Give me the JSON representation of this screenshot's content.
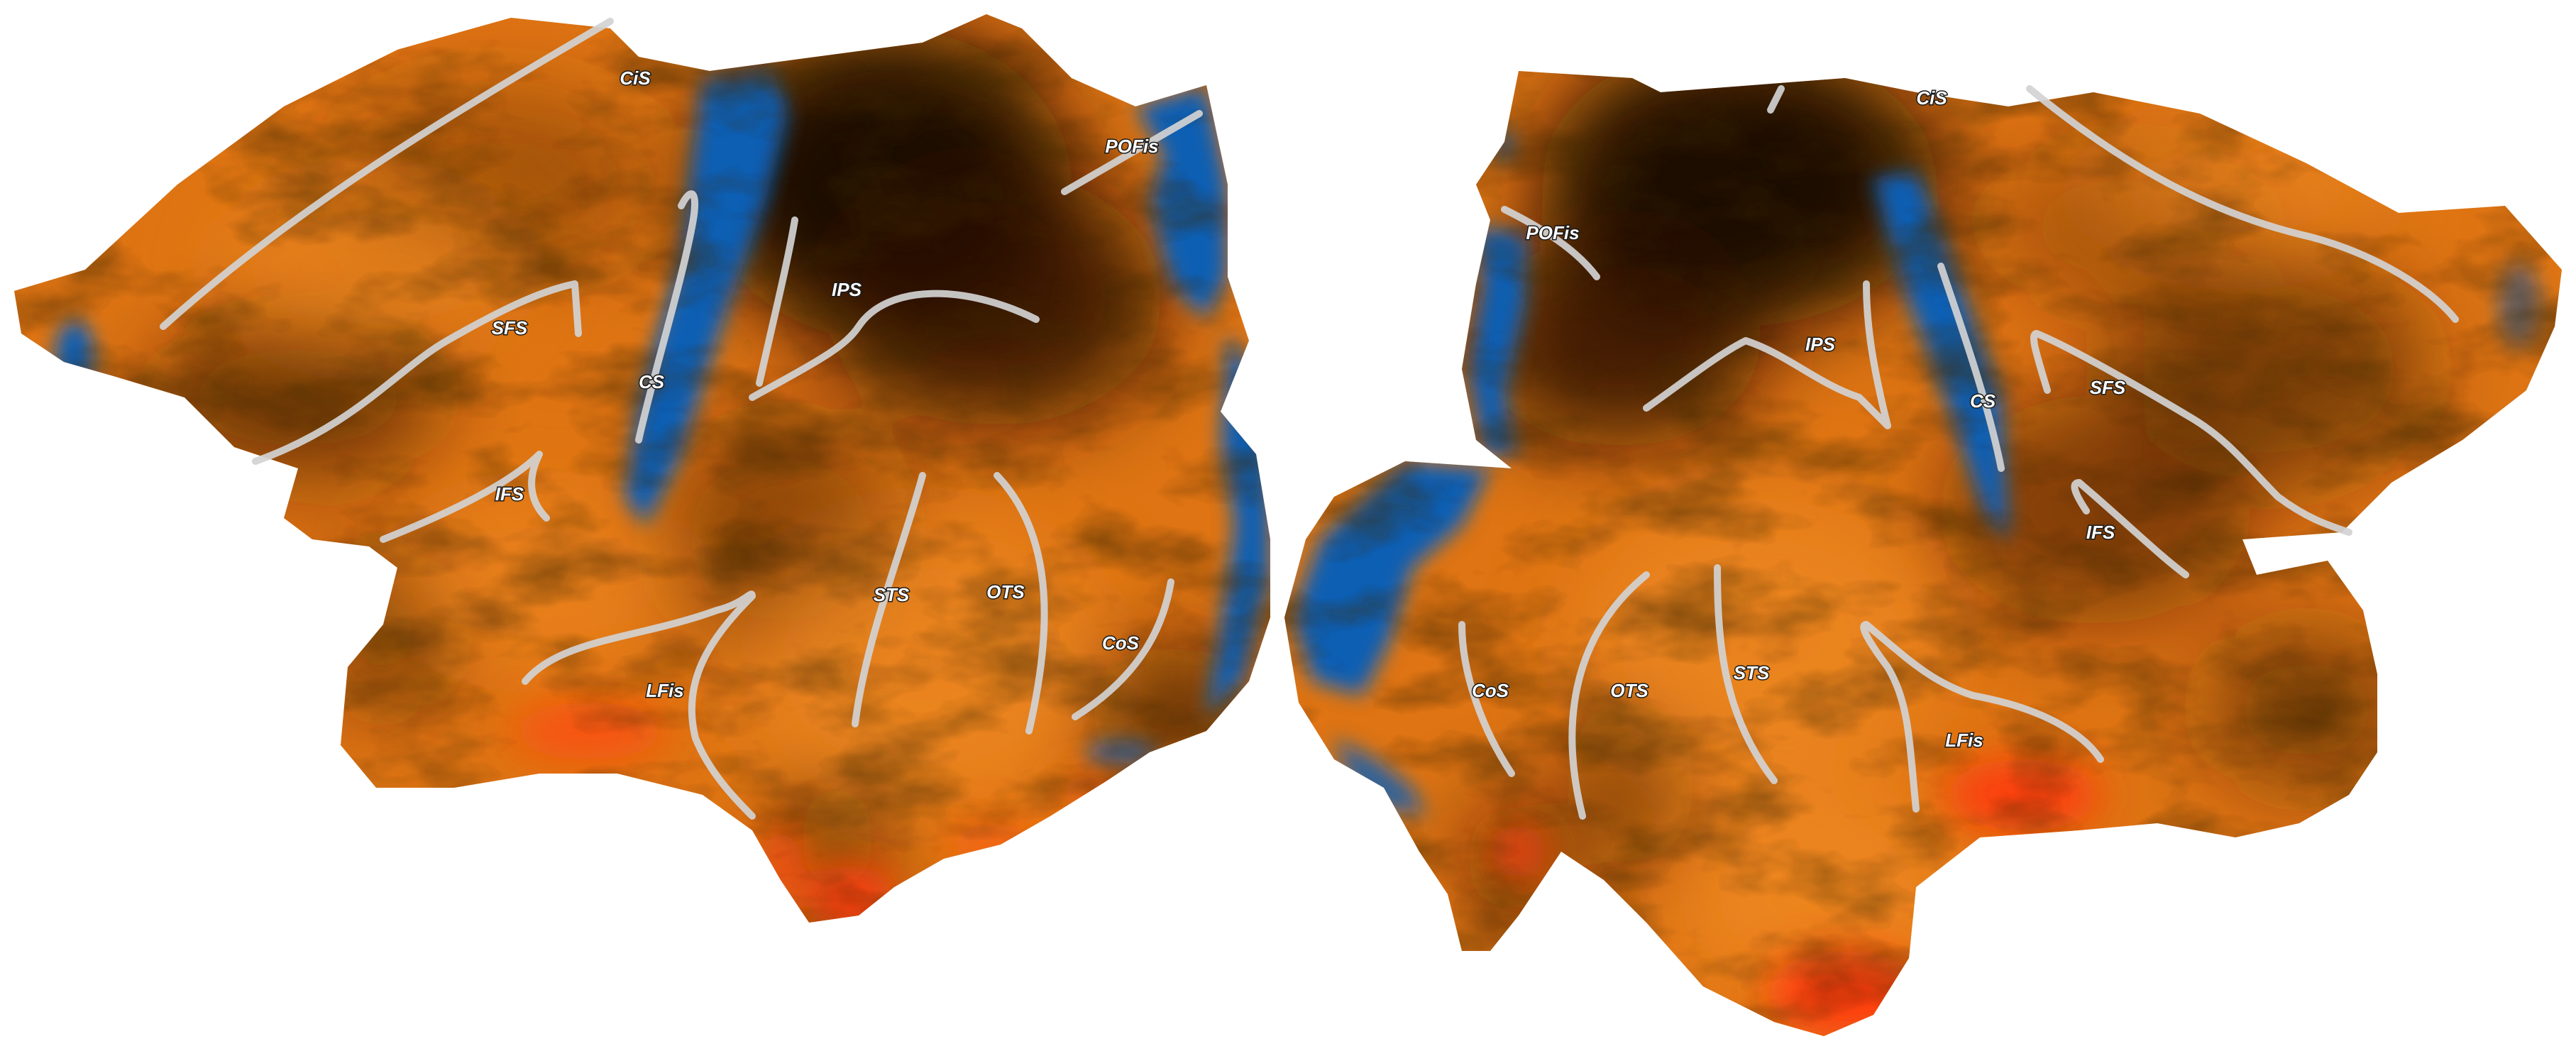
{
  "colors": {
    "background": "#ffffff",
    "cortex_base": "#e07412",
    "cortex_dark": "#1c0c02",
    "cortex_hot": "#ff3a0a",
    "negative": "#0d5fb3",
    "negative_dark": "#062445",
    "sulcus_line": "#d2d2d2",
    "label_text": "#ffffff"
  },
  "left_hemisphere": {
    "labels": {
      "cis": "CiS",
      "pofis": "POFis",
      "ips": "IPS",
      "sfs": "SFS",
      "cs": "CS",
      "ifs": "IFS",
      "sts": "STS",
      "ots": "OTS",
      "cos": "CoS",
      "lfis": "LFis"
    }
  },
  "right_hemisphere": {
    "labels": {
      "cis": "CiS",
      "pofis": "POFis",
      "ips": "IPS",
      "cs": "CS",
      "sfs": "SFS",
      "ifs": "IFS",
      "cos": "CoS",
      "ots": "OTS",
      "sts": "STS",
      "lfis": "LFis"
    }
  }
}
